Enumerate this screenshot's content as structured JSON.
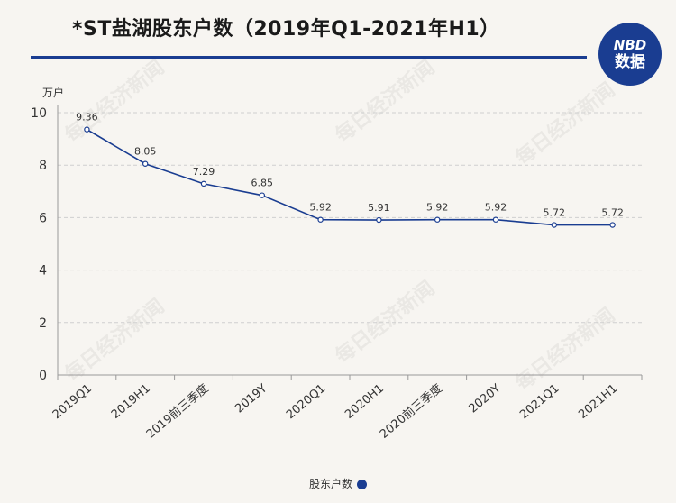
{
  "title": "*ST盐湖股东户数（2019年Q1-2021年H1）",
  "badge": {
    "top": "NBD",
    "bottom": "数据"
  },
  "watermark": "每日经济新闻",
  "colors": {
    "line": "#1a3d91",
    "grid": "#cfcfcf",
    "axis": "#999999"
  },
  "chart_data": {
    "type": "line",
    "title": "*ST盐湖股东户数（2019年Q1-2021年H1）",
    "ylabel": "万户",
    "ylim": [
      0,
      10
    ],
    "yticks": [
      0,
      2,
      4,
      6,
      8,
      10
    ],
    "grid": true,
    "legend_position": "bottom",
    "categories": [
      "2019Q1",
      "2019H1",
      "2019前三季度",
      "2019Y",
      "2020Q1",
      "2020H1",
      "2020前三季度",
      "2020Y",
      "2021Q1",
      "2021H1"
    ],
    "series": [
      {
        "name": "股东户数",
        "values": [
          9.36,
          8.05,
          7.29,
          6.85,
          5.92,
          5.91,
          5.92,
          5.92,
          5.72,
          5.72
        ]
      }
    ]
  }
}
